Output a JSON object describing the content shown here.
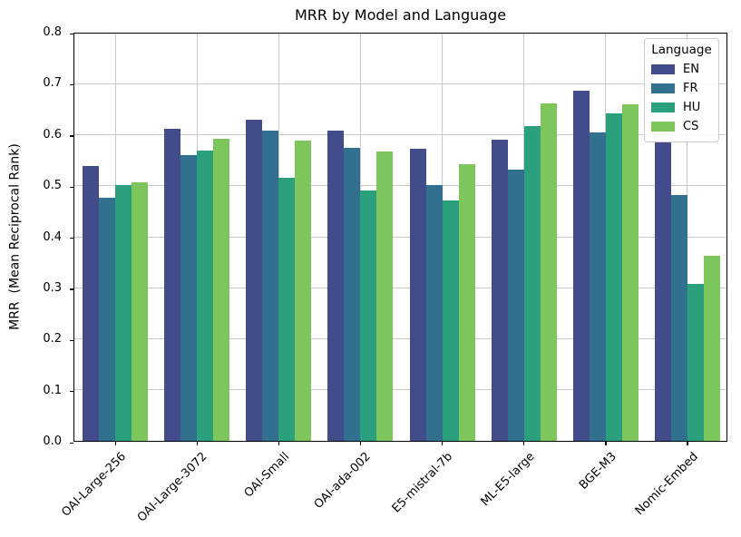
{
  "chart_data": {
    "type": "bar",
    "title": "MRR by Model and Language",
    "xlabel": "",
    "ylabel": "MRR  (Mean Reciprocal Rank)",
    "ylim": [
      0,
      0.8
    ],
    "yticks": [
      0.0,
      0.1,
      0.2,
      0.3,
      0.4,
      0.5,
      0.6,
      0.7,
      0.8
    ],
    "grid": true,
    "legend_title": "Language",
    "legend_position": "upper right",
    "categories": [
      "OAI-Large-256",
      "OAI-Large-3072",
      "OAI-Small",
      "OAI-ada-002",
      "E5-mistral-7b",
      "ML-E5-large",
      "BGE-M3",
      "Nomic-Embed"
    ],
    "series": [
      {
        "name": "EN",
        "color": "#424c8b",
        "values": [
          0.54,
          0.613,
          0.63,
          0.609,
          0.574,
          0.592,
          0.688,
          0.586
        ]
      },
      {
        "name": "FR",
        "color": "#31708e",
        "values": [
          0.478,
          0.562,
          0.609,
          0.576,
          0.502,
          0.533,
          0.605,
          0.482
        ]
      },
      {
        "name": "HU",
        "color": "#2aa17c",
        "values": [
          0.502,
          0.571,
          0.517,
          0.492,
          0.473,
          0.618,
          0.644,
          0.308
        ]
      },
      {
        "name": "CS",
        "color": "#7cc65c",
        "values": [
          0.507,
          0.593,
          0.59,
          0.569,
          0.544,
          0.662,
          0.661,
          0.364
        ]
      }
    ]
  }
}
